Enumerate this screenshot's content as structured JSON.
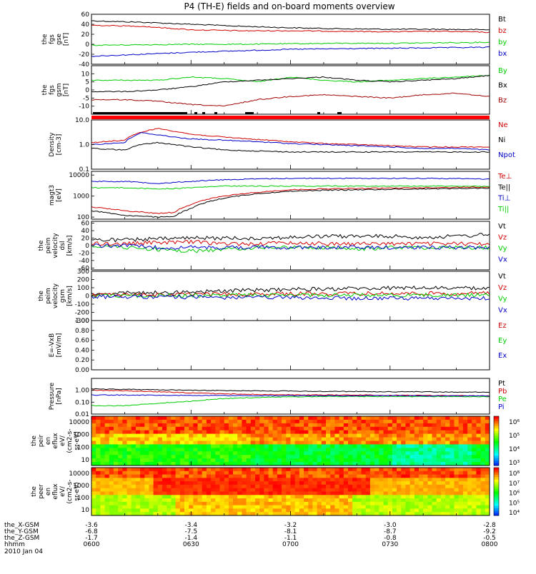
{
  "title": "P4 (TH-E) fields and on-board moments overview",
  "chart_data": [
    {
      "id": "fgs_gse",
      "type": "line",
      "ylabel_lines": [
        "the",
        "fgs",
        "gse",
        "[nT]"
      ],
      "ylim": [
        -40,
        60
      ],
      "yticks": [
        "60",
        "40",
        "20",
        "0",
        "-20",
        "-40"
      ],
      "x": [
        0,
        15,
        30,
        45,
        60,
        75,
        90,
        105,
        120
      ],
      "series": [
        {
          "name": "Bt",
          "color": "#000000",
          "values": [
            47,
            44,
            40,
            36,
            33,
            31,
            30,
            30,
            29
          ]
        },
        {
          "name": "bz",
          "color": "#d00000",
          "values": [
            38,
            36,
            29,
            27,
            27,
            26,
            25,
            26,
            24
          ]
        },
        {
          "name": "by",
          "color": "#00cc00",
          "values": [
            -2,
            -1,
            0,
            0,
            1,
            2,
            2,
            3,
            4
          ]
        },
        {
          "name": "bx",
          "color": "#0000c8",
          "values": [
            -24,
            -20,
            -16,
            -13,
            -10,
            -9,
            -8,
            -7,
            -6
          ]
        }
      ]
    },
    {
      "id": "fgs_gsm",
      "type": "line",
      "ylabel_lines": [
        "the",
        "fgs",
        "gsm",
        "[nT]"
      ],
      "ylim": [
        -15,
        15
      ],
      "yticks": [
        "10",
        "5",
        "0",
        "-5",
        "-10"
      ],
      "x": [
        0,
        10,
        20,
        30,
        40,
        50,
        60,
        70,
        80,
        90,
        100,
        110,
        120
      ],
      "series": [
        {
          "name": "By",
          "color": "#00cc00",
          "values": [
            6,
            6,
            6,
            8,
            7,
            5,
            8,
            6,
            5,
            6,
            7,
            8,
            9
          ]
        },
        {
          "name": "Bx",
          "color": "#000000",
          "values": [
            -1,
            -1,
            0,
            2,
            5,
            6,
            7,
            8,
            6,
            5,
            6,
            7,
            9
          ]
        },
        {
          "name": "Bz",
          "color": "#a00000",
          "values": [
            -6,
            -6,
            -7,
            -9,
            -10,
            -6,
            -4,
            -3,
            -4,
            -5,
            -3,
            -2,
            -4
          ]
        }
      ]
    },
    {
      "id": "density",
      "type": "line",
      "ylabel_lines": [
        "Density",
        "[cm-3]"
      ],
      "yscale": "log",
      "ylim": [
        0.1,
        10
      ],
      "yticks": [
        "10.0",
        "1.0",
        "0.1"
      ],
      "x": [
        0,
        10,
        15,
        20,
        25,
        30,
        40,
        50,
        60,
        70,
        80,
        90,
        100,
        110,
        120
      ],
      "series": [
        {
          "name": "Ne",
          "color": "#d00000",
          "values": [
            1.2,
            1.5,
            3.2,
            4.5,
            3.5,
            2.6,
            2.0,
            1.6,
            1.3,
            1.1,
            1.0,
            0.9,
            0.8,
            0.8,
            0.8
          ]
        },
        {
          "name": "Ni",
          "color": "#000000",
          "values": [
            0.7,
            0.6,
            1.0,
            1.2,
            1.0,
            0.8,
            0.6,
            0.55,
            0.5,
            0.5,
            0.5,
            0.5,
            0.5,
            0.5,
            0.5
          ]
        },
        {
          "name": "Npot",
          "color": "#0000c8",
          "values": [
            1.0,
            1.2,
            3.0,
            2.5,
            2.0,
            1.7,
            1.5,
            1.3,
            1.1,
            1.0,
            0.9,
            0.8,
            0.7,
            0.7,
            0.6
          ]
        }
      ]
    },
    {
      "id": "temperature",
      "type": "line",
      "ylabel_lines": [
        "magt3",
        "[eV]"
      ],
      "yscale": "log",
      "ylim": [
        80,
        15000
      ],
      "yticks": [
        "10000",
        "1000",
        "100"
      ],
      "x": [
        0,
        10,
        20,
        25,
        30,
        40,
        50,
        60,
        70,
        80,
        90,
        100,
        110,
        120
      ],
      "series": [
        {
          "name": "Te⊥",
          "color": "#d00000",
          "values": [
            300,
            200,
            150,
            170,
            400,
            1000,
            1500,
            2000,
            2200,
            2300,
            2400,
            2500,
            2600,
            2700
          ]
        },
        {
          "name": "Te||",
          "color": "#000000",
          "values": [
            200,
            120,
            100,
            110,
            250,
            800,
            1300,
            1700,
            1900,
            2000,
            2100,
            2200,
            2300,
            2400
          ]
        },
        {
          "name": "Ti⊥",
          "color": "#0000c8",
          "values": [
            5000,
            5000,
            4000,
            4500,
            5000,
            6000,
            6500,
            7000,
            7000,
            7000,
            7000,
            7000,
            6800,
            6500
          ]
        },
        {
          "name": "Ti||",
          "color": "#00cc00",
          "values": [
            2500,
            2500,
            2200,
            2300,
            2500,
            3000,
            3000,
            3000,
            3000,
            3000,
            3000,
            3000,
            3000,
            2900
          ]
        }
      ]
    },
    {
      "id": "velocity_dsl",
      "type": "line",
      "ylabel_lines": [
        "the",
        "peim",
        "velocity",
        "dsl",
        "[km/s]"
      ],
      "ylim": [
        -65,
        65
      ],
      "yticks": [
        "60",
        "40",
        "20",
        "0",
        "-20",
        "-40",
        "-60"
      ],
      "x": [
        0,
        10,
        20,
        30,
        40,
        50,
        60,
        70,
        80,
        90,
        100,
        110,
        120
      ],
      "series": [
        {
          "name": "Vt",
          "color": "#000000",
          "values": [
            15,
            15,
            18,
            20,
            20,
            20,
            22,
            25,
            25,
            25,
            22,
            25,
            30
          ]
        },
        {
          "name": "Vz",
          "color": "#d00000",
          "values": [
            5,
            5,
            8,
            10,
            5,
            5,
            8,
            5,
            5,
            5,
            5,
            5,
            5
          ]
        },
        {
          "name": "Vy",
          "color": "#00cc00",
          "values": [
            0,
            -5,
            -10,
            -15,
            -10,
            -5,
            -5,
            -5,
            -10,
            -5,
            -5,
            -5,
            -5
          ]
        },
        {
          "name": "Vx",
          "color": "#0000c8",
          "values": [
            0,
            0,
            -5,
            -5,
            -5,
            -5,
            -5,
            -5,
            -5,
            -5,
            -5,
            -5,
            -5
          ]
        }
      ]
    },
    {
      "id": "velocity_gsm",
      "type": "line",
      "ylabel_lines": [
        "the",
        "peim",
        "velocity",
        "gsm",
        "[km/s]"
      ],
      "ylim": [
        -300,
        300
      ],
      "yticks": [
        "300",
        "200",
        "100",
        "0",
        "-100",
        "-200",
        "-300"
      ],
      "x": [
        0,
        20,
        40,
        60,
        80,
        100,
        120
      ],
      "series": [
        {
          "name": "Vt",
          "color": "#000000",
          "values": [
            30,
            40,
            60,
            80,
            90,
            100,
            90
          ]
        },
        {
          "name": "Vz",
          "color": "#d00000",
          "values": [
            10,
            15,
            20,
            25,
            30,
            30,
            30
          ]
        },
        {
          "name": "Vy",
          "color": "#00cc00",
          "values": [
            0,
            5,
            5,
            10,
            10,
            10,
            10
          ]
        },
        {
          "name": "Vx",
          "color": "#0000c8",
          "values": [
            -10,
            -10,
            -20,
            -20,
            -30,
            -30,
            -30
          ]
        }
      ]
    },
    {
      "id": "efield",
      "type": "line",
      "ylabel_lines": [
        "E=-VxB",
        "[mV/m]"
      ],
      "ylim": [
        0,
        1
      ],
      "yticks": [
        "1.00",
        "0.80",
        "0.60",
        "0.40",
        "0.20",
        "0.00"
      ],
      "series": [
        {
          "name": "Ez",
          "color": "#d00000",
          "values": []
        },
        {
          "name": "Ey",
          "color": "#00cc00",
          "values": []
        },
        {
          "name": "Ex",
          "color": "#0000c8",
          "values": []
        }
      ]
    },
    {
      "id": "pressure",
      "type": "line",
      "ylabel_lines": [
        "Pressure",
        "[nPa]"
      ],
      "yscale": "log",
      "ylim": [
        0.01,
        10
      ],
      "yticks": [
        "1.00",
        "0.10",
        "0.01"
      ],
      "x": [
        0,
        10,
        20,
        30,
        40,
        50,
        60,
        70,
        80,
        90,
        100,
        110,
        120
      ],
      "series": [
        {
          "name": "Pt",
          "color": "#000000",
          "values": [
            1.3,
            1.2,
            1.1,
            1.0,
            0.95,
            0.9,
            0.85,
            0.8,
            0.8,
            0.75,
            0.75,
            0.7,
            0.7
          ]
        },
        {
          "name": "Pb",
          "color": "#d00000",
          "values": [
            1.0,
            0.9,
            0.75,
            0.6,
            0.5,
            0.45,
            0.42,
            0.4,
            0.4,
            0.38,
            0.37,
            0.35,
            0.34
          ]
        },
        {
          "name": "Pe",
          "color": "#00cc00",
          "values": [
            0.05,
            0.05,
            0.08,
            0.12,
            0.2,
            0.25,
            0.28,
            0.3,
            0.3,
            0.3,
            0.3,
            0.3,
            0.28
          ]
        },
        {
          "name": "Pi",
          "color": "#0000c8",
          "values": [
            0.4,
            0.4,
            0.38,
            0.37,
            0.36,
            0.35,
            0.35,
            0.35,
            0.35,
            0.35,
            0.34,
            0.34,
            0.33
          ]
        }
      ]
    },
    {
      "id": "peir_spectrogram",
      "type": "heatmap",
      "ylabel_lines": [
        "the",
        "peir",
        "en",
        "eflux",
        "eV/",
        "(cm2-s-",
        "sr-eV)"
      ],
      "yscale": "log",
      "yticks": [
        "10000",
        "1000",
        "100",
        "10"
      ],
      "colorbar_ticks": [
        "10⁶",
        "10⁵",
        "10⁴",
        "10³"
      ]
    },
    {
      "id": "peer_spectrogram",
      "type": "heatmap",
      "ylabel_lines": [
        "the",
        "peer",
        "en",
        "eflux",
        "eV/",
        "(cm2-s-",
        "sr-eV)"
      ],
      "yscale": "log",
      "yticks": [
        "10000",
        "1000",
        "100",
        "10"
      ],
      "colorbar_ticks": [
        "10⁸",
        "10⁷",
        "10⁶",
        "10⁵",
        "10⁴"
      ]
    }
  ],
  "footer": {
    "rows": [
      {
        "label": "the_X-GSM",
        "values": [
          "-3.6",
          "-3.4",
          "-3.2",
          "-3.0",
          "-2.8"
        ]
      },
      {
        "label": "the_Y-GSM",
        "values": [
          "-6.8",
          "-7.5",
          "-8.1",
          "-8.7",
          "-9.2"
        ]
      },
      {
        "label": "the_Z-GSM",
        "values": [
          "-1.7",
          "-1.4",
          "-1.1",
          "-0.8",
          "-0.5"
        ]
      },
      {
        "label": "hhmm",
        "values": [
          "0600",
          "0630",
          "0700",
          "0730",
          "0800"
        ]
      }
    ],
    "date": "2010 Jan 04"
  }
}
